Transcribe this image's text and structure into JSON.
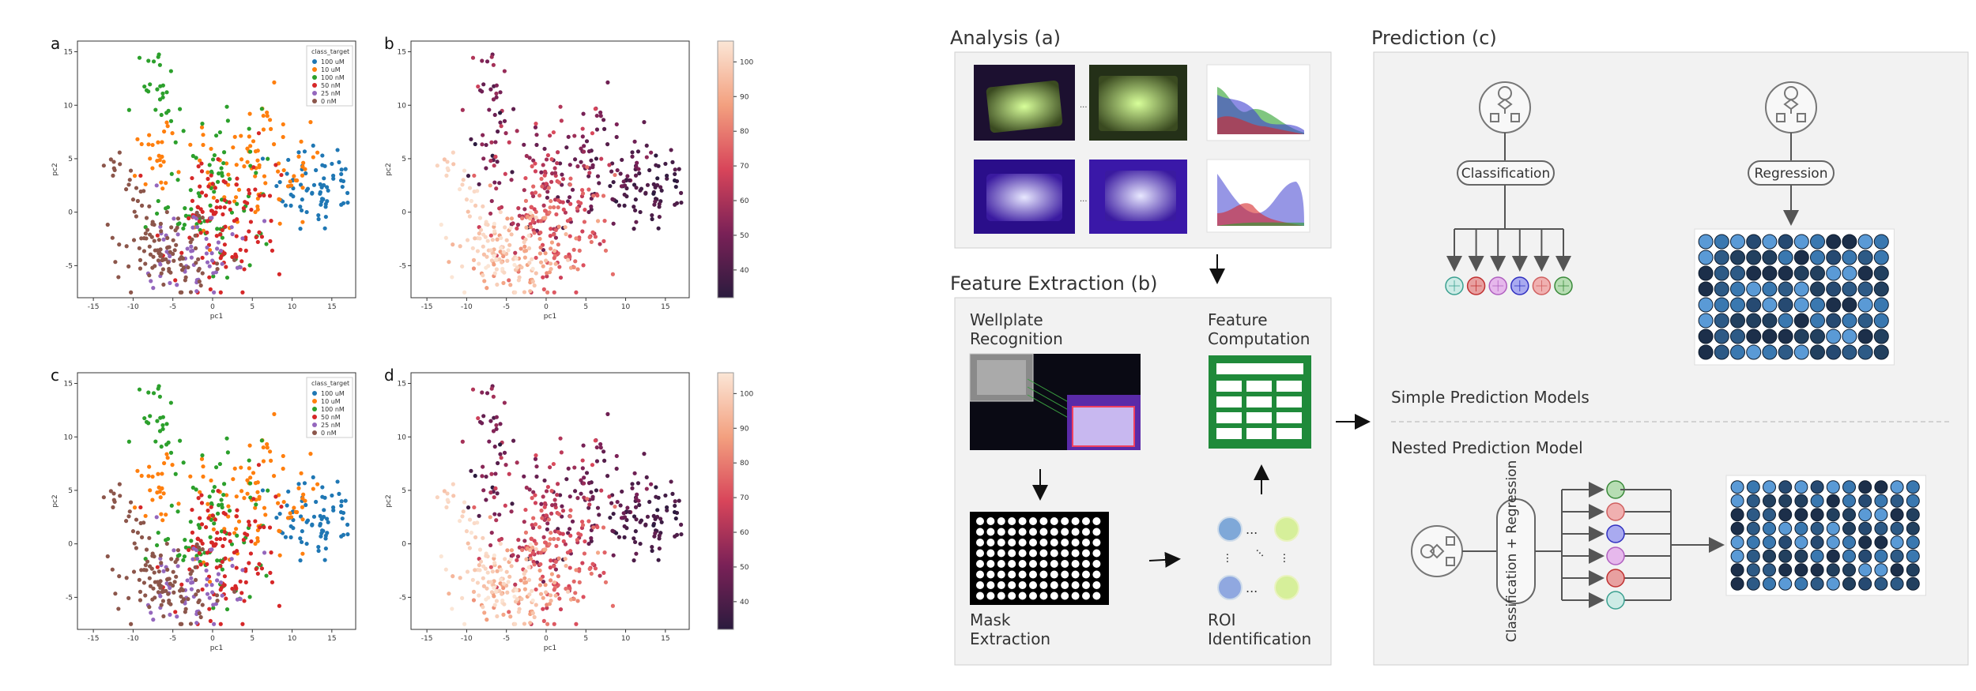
{
  "panels": [
    {
      "letter": "a",
      "legend_title": "class_target",
      "legend": [
        "100 uM",
        "10 uM",
        "100 nM",
        "50 nM",
        "25 nM",
        "0 nM"
      ]
    },
    {
      "letter": "b",
      "colorbar_ticks": [
        "100",
        "90",
        "80",
        "70",
        "60",
        "50",
        "40"
      ]
    },
    {
      "letter": "c",
      "legend_title": "class_target",
      "legend": [
        "100 uM",
        "10 uM",
        "100 nM",
        "50 nM",
        "25 nM",
        "0 nM"
      ]
    },
    {
      "letter": "d",
      "colorbar_ticks": [
        "100",
        "90",
        "80",
        "70",
        "60",
        "50",
        "40"
      ]
    }
  ],
  "axes": {
    "xlabel": "pc1",
    "ylabel": "pc2",
    "xticks": [
      "-15",
      "-10",
      "-5",
      "0",
      "5",
      "10",
      "15"
    ],
    "yticks": [
      "15",
      "10",
      "5",
      "0",
      "-5"
    ]
  },
  "colors": {
    "100 uM": "#1f77b4",
    "10 uM": "#ff7f0e",
    "100 nM": "#2ca02c",
    "50 nM": "#d62728",
    "25 nM": "#9467bd",
    "0 nM": "#8c564b"
  },
  "workflow": {
    "analysis_title": "Analysis (a)",
    "feature_title": "Feature Extraction (b)",
    "prediction_title": "Prediction (c)",
    "wellplate_recognition": [
      "Wellplate",
      "Recognition"
    ],
    "feature_computation": [
      "Feature",
      "Computation"
    ],
    "mask_extraction": [
      "Mask",
      "Extraction"
    ],
    "roi_identification": [
      "ROI",
      "Identification"
    ],
    "classification": "Classification",
    "regression": "Regression",
    "simple_models": "Simple Prediction Models",
    "nested_model": "Nested Prediction Model",
    "class_regr": "Classification + Regression",
    "ellipsis": "..."
  },
  "chart_data": [
    {
      "type": "scatter",
      "panel": "a",
      "xlabel": "pc1",
      "ylabel": "pc2",
      "xlim": [
        -17,
        18
      ],
      "ylim": [
        -8,
        16
      ],
      "hue": "class_target",
      "series_names": [
        "100 uM",
        "10 uM",
        "100 nM",
        "50 nM",
        "25 nM",
        "0 nM"
      ]
    },
    {
      "type": "scatter",
      "panel": "b",
      "xlabel": "pc1",
      "ylabel": "pc2",
      "xlim": [
        -17,
        18
      ],
      "ylim": [
        -8,
        16
      ],
      "colorbar_range": [
        32,
        106
      ]
    },
    {
      "type": "scatter",
      "panel": "c",
      "xlabel": "pc1",
      "ylabel": "pc2",
      "xlim": [
        -17,
        18
      ],
      "ylim": [
        -8,
        16
      ],
      "hue": "class_target",
      "series_names": [
        "100 uM",
        "10 uM",
        "100 nM",
        "50 nM",
        "25 nM",
        "0 nM"
      ]
    },
    {
      "type": "scatter",
      "panel": "d",
      "xlabel": "pc1",
      "ylabel": "pc2",
      "xlim": [
        -17,
        18
      ],
      "ylim": [
        -8,
        16
      ],
      "colorbar_range": [
        32,
        106
      ]
    }
  ]
}
